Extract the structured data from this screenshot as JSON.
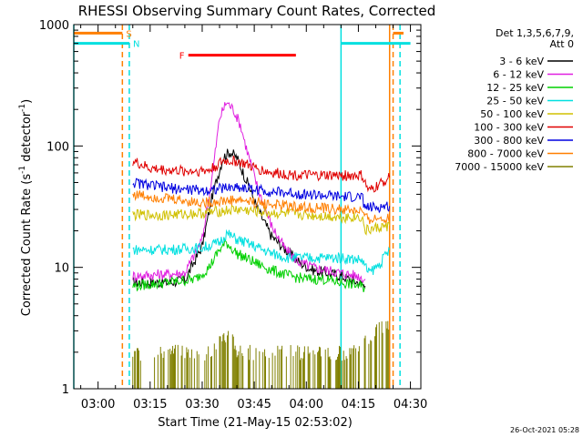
{
  "chart_data": {
    "type": "line",
    "title": "RHESSI Observing Summary Count Rates, Corrected",
    "xlabel": "Start Time (21-May-15 02:53:02)",
    "ylabel": "Corrected Count Rate (s⁻¹ detector⁻¹)",
    "ylabel_main": "Corrected Count Rate (s",
    "ylabel_mid": " detector",
    "ylabel_close": ")",
    "ylabel_sup": "-1",
    "y_scale": "log",
    "ylim": [
      1,
      1000
    ],
    "xlim": [
      "02:53",
      "04:33"
    ],
    "x_ticks": [
      "03:00",
      "03:15",
      "03:30",
      "03:45",
      "04:00",
      "04:15",
      "04:30"
    ],
    "y_ticks": [
      "1",
      "10",
      "100",
      "1000"
    ],
    "legend_header": [
      "Det 1,3,5,6,7,9,",
      "Att 0"
    ],
    "series": [
      {
        "name": "3 - 6 keV",
        "color": "#000000",
        "x": [
          "03:10",
          "03:20",
          "03:25",
          "03:30",
          "03:33",
          "03:36",
          "03:38",
          "03:40",
          "03:43",
          "03:46",
          "03:50",
          "03:54",
          "03:58",
          "04:02",
          "04:06",
          "04:10",
          "04:15",
          "04:17"
        ],
        "y": [
          7.5,
          7.5,
          7.8,
          15,
          40,
          80,
          90,
          80,
          50,
          30,
          18,
          14,
          11,
          9.5,
          9,
          8.5,
          7.5,
          7
        ]
      },
      {
        "name": "6 - 12 keV",
        "color": "#e020e0",
        "x": [
          "03:10",
          "03:20",
          "03:25",
          "03:30",
          "03:33",
          "03:35",
          "03:37",
          "03:39",
          "03:41",
          "03:43",
          "03:46",
          "03:50",
          "03:54",
          "03:58",
          "04:02",
          "04:06",
          "04:10",
          "04:15",
          "04:17"
        ],
        "y": [
          8.5,
          8.8,
          9,
          17,
          60,
          170,
          230,
          200,
          150,
          90,
          45,
          22,
          14,
          11,
          10,
          9.5,
          9,
          8.5,
          8
        ]
      },
      {
        "name": "12 - 25 keV",
        "color": "#00d000",
        "x": [
          "03:10",
          "03:20",
          "03:28",
          "03:32",
          "03:35",
          "03:37",
          "03:40",
          "03:45",
          "03:50",
          "03:55",
          "04:00",
          "04:05",
          "04:10",
          "04:14",
          "04:17"
        ],
        "y": [
          7,
          7.5,
          8,
          10,
          14,
          16,
          13,
          11,
          9.5,
          8.5,
          8,
          8,
          7.5,
          7.2,
          6.8
        ]
      },
      {
        "name": "25 - 50 keV",
        "color": "#00e0e0",
        "x": [
          "03:10",
          "03:20",
          "03:30",
          "03:35",
          "03:37",
          "03:40",
          "03:45",
          "03:50",
          "03:55",
          "04:00",
          "04:10",
          "04:16",
          "04:18",
          "04:21",
          "04:24"
        ],
        "y": [
          14,
          14,
          14.5,
          16,
          19,
          17,
          15,
          13,
          12,
          12,
          12,
          11.5,
          9,
          10.5,
          14
        ]
      },
      {
        "name": "50 - 100 keV",
        "color": "#d0c000",
        "x": [
          "03:10",
          "03:20",
          "03:30",
          "03:40",
          "03:50",
          "04:00",
          "04:10",
          "04:16",
          "04:17",
          "04:20",
          "04:24"
        ],
        "y": [
          27,
          27,
          28,
          30,
          28,
          27,
          26,
          26,
          20,
          21,
          22
        ]
      },
      {
        "name": "100 - 300 keV",
        "color": "#e00000",
        "x": [
          "03:10",
          "03:15",
          "03:25",
          "03:32",
          "03:36",
          "03:40",
          "03:45",
          "03:50",
          "04:00",
          "04:10",
          "04:16",
          "04:18",
          "04:21",
          "04:24"
        ],
        "y": [
          75,
          65,
          62,
          63,
          75,
          75,
          66,
          60,
          57,
          57,
          57,
          42,
          48,
          55
        ]
      },
      {
        "name": "300 - 800 keV",
        "color": "#0000e0",
        "x": [
          "03:10",
          "03:20",
          "03:30",
          "03:40",
          "03:50",
          "04:00",
          "04:10",
          "04:16",
          "04:17",
          "04:20",
          "04:24"
        ],
        "y": [
          50,
          45,
          43,
          46,
          42,
          40,
          38,
          38,
          31,
          31,
          32
        ]
      },
      {
        "name": "800 - 7000 keV",
        "color": "#ff7f00",
        "x": [
          "03:10",
          "03:20",
          "03:30",
          "03:40",
          "03:50",
          "04:00",
          "04:10",
          "04:16",
          "04:17",
          "04:20",
          "04:24"
        ],
        "y": [
          40,
          37,
          34,
          36,
          33,
          31,
          30,
          29,
          25,
          25,
          26
        ]
      },
      {
        "name": "7000 - 15000 keV",
        "color": "#808000",
        "x": [
          "03:10",
          "03:32",
          "03:35",
          "03:38",
          "03:40",
          "04:16",
          "04:17",
          "04:24"
        ],
        "y": [
          2,
          2,
          2.5,
          3,
          2,
          2,
          2.5,
          3.5
        ]
      }
    ],
    "flags": [
      {
        "label": "S",
        "color": "#ff7f00",
        "x": [
          "02:53",
          "03:07",
          "04:25",
          "04:28"
        ],
        "y": 850
      },
      {
        "label": "N",
        "color": "#00e0e0",
        "x": [
          "02:53",
          "03:09",
          "04:10",
          "04:30"
        ],
        "y": 700
      },
      {
        "label": "F",
        "color": "#ff0000",
        "x": [
          "03:26",
          "03:57"
        ],
        "y": 560
      }
    ],
    "vlines": [
      {
        "x": "02:53",
        "color": "#00e0e0",
        "dash": false
      },
      {
        "x": "03:07",
        "color": "#ff7f00",
        "dash": true
      },
      {
        "x": "03:09",
        "color": "#00e0e0",
        "dash": true
      },
      {
        "x": "04:10",
        "color": "#00e0e0",
        "dash": false
      },
      {
        "x": "04:24",
        "color": "#ff7f00",
        "dash": false
      },
      {
        "x": "04:25",
        "color": "#ff7f00",
        "dash": true
      },
      {
        "x": "04:27",
        "color": "#00e0e0",
        "dash": true
      }
    ],
    "timestamp": "26-Oct-2021 05:28"
  }
}
